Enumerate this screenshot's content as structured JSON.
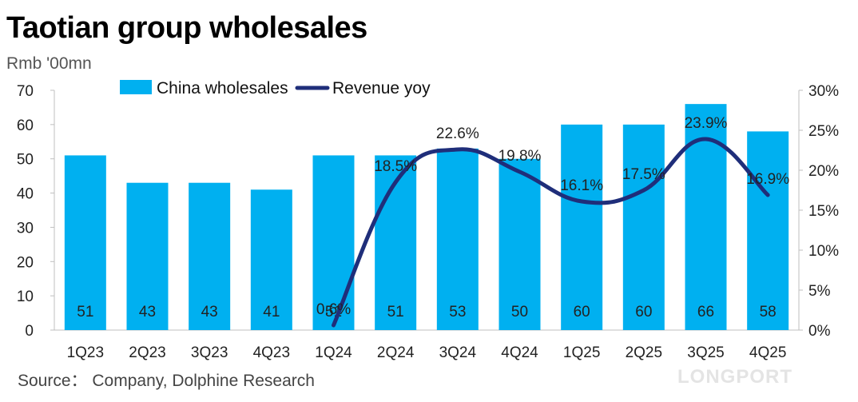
{
  "title": "Taotian group wholesales",
  "unit": "Rmb '00mn",
  "source": "Source： Company, Dolphine Research",
  "brand": "LONGPORT",
  "colors": {
    "bar": "#00b0f0",
    "line": "#1f2e7a",
    "axis": "#bfbfbf"
  },
  "chart_data": {
    "type": "bar",
    "categories": [
      "1Q23",
      "2Q23",
      "3Q23",
      "4Q23",
      "1Q24",
      "2Q24",
      "3Q24",
      "4Q24",
      "1Q25",
      "2Q25",
      "3Q25",
      "4Q25"
    ],
    "series": [
      {
        "name": "China wholesales",
        "type": "bar",
        "axis": "left",
        "values": [
          51,
          43,
          43,
          41,
          51,
          51,
          53,
          50,
          60,
          60,
          66,
          58
        ],
        "labels": [
          "51",
          "43",
          "43",
          "41",
          "51",
          "51",
          "53",
          "50",
          "60",
          "60",
          "66",
          "58"
        ]
      },
      {
        "name": "Revenue yoy",
        "type": "line",
        "axis": "right",
        "values": [
          null,
          null,
          null,
          null,
          0.6,
          18.5,
          22.6,
          19.8,
          16.1,
          17.5,
          23.9,
          16.9
        ],
        "labels": [
          "",
          "",
          "",
          "",
          "0.6%",
          "18.5%",
          "22.6%",
          "19.8%",
          "16.1%",
          "17.5%",
          "23.9%",
          "16.9%"
        ]
      }
    ],
    "ylim": [
      0,
      70
    ],
    "yticks": [
      "0",
      "10",
      "20",
      "30",
      "40",
      "50",
      "60",
      "70"
    ],
    "y2lim": [
      0,
      30
    ],
    "y2ticks": [
      "0%",
      "5%",
      "10%",
      "15%",
      "20%",
      "25%",
      "30%"
    ],
    "legend": {
      "placement": "top-left",
      "items": [
        "China wholesales",
        "Revenue yoy"
      ]
    },
    "grid": false
  }
}
